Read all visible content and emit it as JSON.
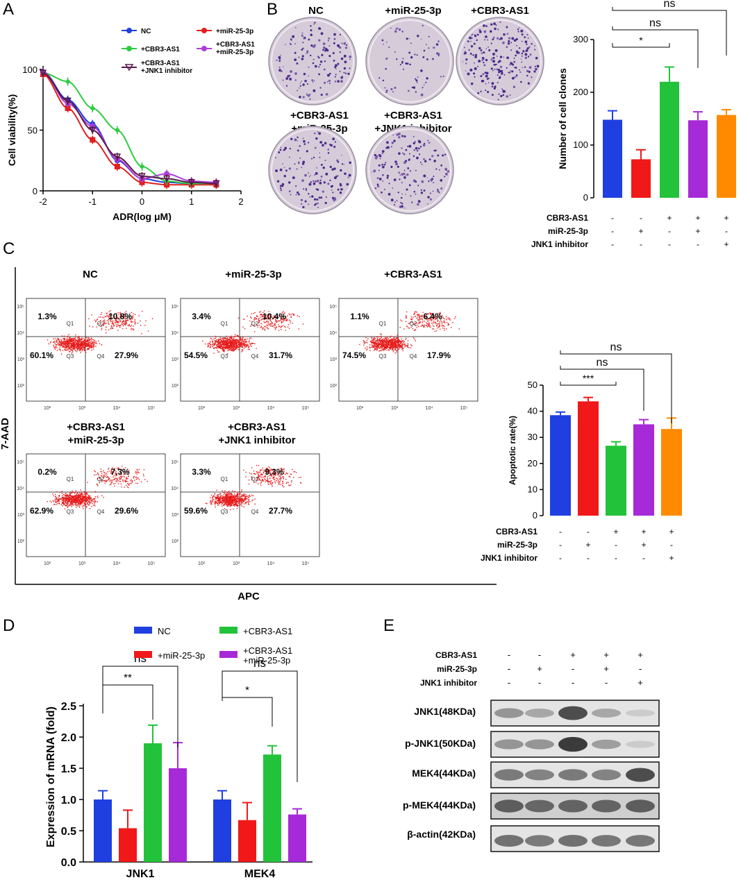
{
  "panels": {
    "A": "A",
    "B": "B",
    "C": "C",
    "D": "D",
    "E": "E"
  },
  "panelA": {
    "ylabel": "Cell viability(%)",
    "xlabel": "ADR(log μM)",
    "legend": [
      "NC",
      "+miR-25-3p",
      "+CBR3-AS1",
      "+CBR3-AS1\n+miR-25-3p",
      "+CBR3-AS1\n+JNK1 inhibitor"
    ],
    "colors": [
      "#1f3fe0",
      "#e01f1f",
      "#2ecc40",
      "#b03cd8",
      "#5a1a4a"
    ]
  },
  "panelB": {
    "dish_titles": [
      "NC",
      "+miR-25-3p",
      "+CBR3-AS1",
      "+CBR3-AS1\n+miR-25-3p",
      "+CBR3-AS1\n+JNK1 inhibitor"
    ],
    "sig": [
      "*",
      "ns",
      "ns"
    ]
  },
  "panelC": {
    "titles": [
      "NC",
      "+miR-25-3p",
      "+CBR3-AS1",
      "+CBR3-AS1\n+miR-25-3p",
      "+CBR3-AS1\n+JNK1 inhibitor"
    ],
    "quadrants": [
      {
        "q1": "1.3%",
        "q2": "10.8%",
        "q3": "60.1%",
        "q4": "27.9%"
      },
      {
        "q1": "3.4%",
        "q2": "10.4%",
        "q3": "54.5%",
        "q4": "31.7%"
      },
      {
        "q1": "1.1%",
        "q2": "6.4%",
        "q3": "74.5%",
        "q4": "17.9%"
      },
      {
        "q1": "0.2%",
        "q2": "7.3%",
        "q3": "62.9%",
        "q4": "29.6%"
      },
      {
        "q1": "3.3%",
        "q2": "9.3%",
        "q3": "59.6%",
        "q4": "27.7%"
      }
    ],
    "quad_names": [
      "Q1",
      "Q2",
      "Q3",
      "Q4"
    ],
    "ylabel": "7-AAD",
    "xlabel": "APC",
    "sig": [
      "***",
      "ns",
      "ns"
    ]
  },
  "treatment_table": {
    "rows": [
      "CBR3-AS1",
      "miR-25-3p",
      "JNK1 inhibitor"
    ],
    "values": [
      [
        "-",
        "-",
        "+",
        "+",
        "+"
      ],
      [
        "-",
        "+",
        "-",
        "+",
        "-"
      ],
      [
        "-",
        "-",
        "-",
        "-",
        "+"
      ]
    ]
  },
  "panelD": {
    "legend": [
      "NC",
      "+miR-25-3p",
      "+CBR3-AS1",
      "+CBR3-AS1\n+miR-25-3p"
    ],
    "sig_jnk1": [
      "**",
      "ns"
    ],
    "sig_mek4": [
      "*",
      "ns"
    ]
  },
  "panelE": {
    "header_rows": [
      "CBR3-AS1",
      "miR-25-3p",
      "JNK1 inhibitor"
    ],
    "header_values": [
      [
        "-",
        "-",
        "+",
        "+",
        "+"
      ],
      [
        "-",
        "+",
        "-",
        "+",
        "-"
      ],
      [
        "-",
        "-",
        "-",
        "-",
        "+"
      ]
    ],
    "bands": [
      "JNK1(48KDa)",
      "p-JNK1(50KDa)",
      "MEK4(44KDa)",
      "p-MEK4(44KDa)",
      "β-actin(42KDa)"
    ]
  },
  "chart_data": [
    {
      "id": "A",
      "type": "line",
      "xlabel": "ADR(log μM)",
      "ylabel": "Cell viability(%)",
      "xlim": [
        -2,
        2
      ],
      "ylim": [
        0,
        100
      ],
      "x": [
        -2,
        -1.5,
        -1,
        -0.5,
        0,
        0.5,
        1,
        1.5
      ],
      "series": [
        {
          "name": "NC",
          "values": [
            98,
            75,
            55,
            25,
            10,
            7,
            6,
            5
          ]
        },
        {
          "name": "+miR-25-3p",
          "values": [
            96,
            68,
            42,
            20,
            7,
            5,
            5,
            5
          ]
        },
        {
          "name": "+CBR3-AS1",
          "values": [
            97,
            90,
            68,
            50,
            20,
            8,
            6,
            6
          ]
        },
        {
          "name": "+CBR3-AS1\n+miR-25-3p",
          "values": [
            98,
            72,
            53,
            26,
            10,
            14,
            8,
            7
          ]
        },
        {
          "name": "+CBR3-AS1\n+JNK1 inhibitor",
          "values": [
            97,
            74,
            50,
            28,
            12,
            10,
            7,
            6
          ]
        }
      ]
    },
    {
      "id": "B",
      "type": "bar",
      "ylabel": "Number of cell clones",
      "ylim": [
        0,
        300
      ],
      "yticks": [
        0,
        100,
        200,
        300
      ],
      "values": [
        148,
        73,
        220,
        147,
        157
      ],
      "errors": [
        17,
        18,
        28,
        16,
        10
      ],
      "colors": [
        "#1f3fe0",
        "#f01818",
        "#22c33a",
        "#a62ad8",
        "#ff8a00"
      ]
    },
    {
      "id": "C",
      "type": "bar",
      "ylabel": "Apoptotic rate(%)",
      "ylim": [
        0,
        50
      ],
      "yticks": [
        0,
        10,
        20,
        30,
        40,
        50
      ],
      "values": [
        38.5,
        43.8,
        26.8,
        35,
        33.2
      ],
      "errors": [
        1.2,
        1.5,
        1.5,
        1.8,
        4.2
      ],
      "colors": [
        "#1f3fe0",
        "#f01818",
        "#22c33a",
        "#a62ad8",
        "#ff8a00"
      ]
    },
    {
      "id": "D",
      "type": "bar",
      "ylabel": "Expression of  mRNA (fold)",
      "ylim": [
        0,
        2.5
      ],
      "yticks": [
        "0.0",
        "0.5",
        "1.0",
        "1.5",
        "2.0",
        "2.5"
      ],
      "categories": [
        "JNK1",
        "MEK4"
      ],
      "series": [
        {
          "name": "NC",
          "values": [
            1.0,
            1.0
          ],
          "errors": [
            0.14,
            0.14
          ]
        },
        {
          "name": "+miR-25-3p",
          "values": [
            0.54,
            0.67
          ],
          "errors": [
            0.29,
            0.28
          ]
        },
        {
          "name": "+CBR3-AS1",
          "values": [
            1.9,
            1.72
          ],
          "errors": [
            0.29,
            0.14
          ]
        },
        {
          "name": "+CBR3-AS1\n+miR-25-3p",
          "values": [
            1.5,
            0.76
          ],
          "errors": [
            0.41,
            0.09
          ]
        }
      ],
      "colors": [
        "#1f3fe0",
        "#f01818",
        "#22c33a",
        "#a62ad8"
      ]
    }
  ]
}
